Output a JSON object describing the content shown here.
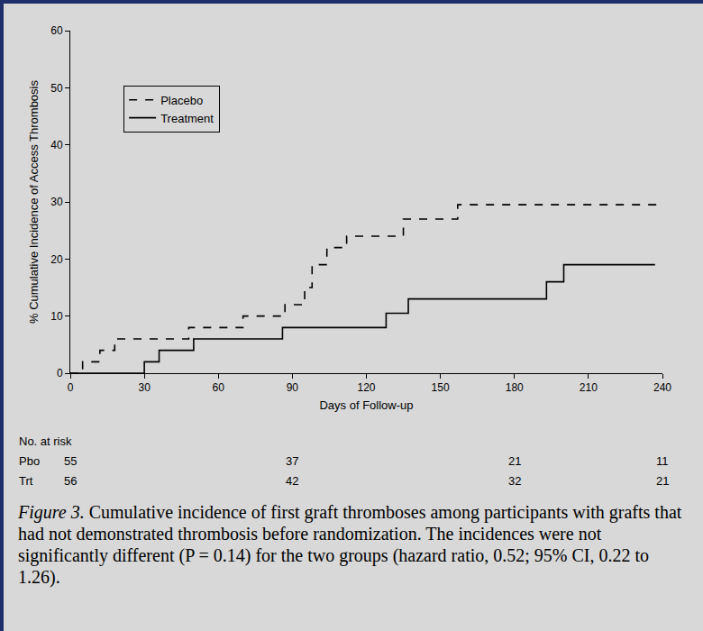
{
  "chart_data": {
    "type": "line",
    "x_label": "Days of Follow-up",
    "y_label": "% Cumulative Incidence of Access Thrombosis",
    "series": [
      {
        "name": "Placebo",
        "color": "#000000",
        "line_style": "dashed",
        "x": [
          0,
          5,
          12,
          18,
          48,
          70,
          87,
          95,
          98,
          104,
          112,
          135,
          157,
          238
        ],
        "values": [
          0,
          2,
          4,
          6,
          8,
          10,
          12,
          15,
          19,
          22,
          24,
          27,
          29.5,
          29.5
        ]
      },
      {
        "name": "Treatment",
        "color": "#000000",
        "line_style": "solid",
        "x": [
          0,
          30,
          36,
          50,
          86,
          128,
          137,
          193,
          200,
          237
        ],
        "values": [
          0,
          2,
          4,
          6,
          8,
          10.5,
          13,
          16,
          19,
          19
        ]
      }
    ],
    "xlim": [
      0,
      240
    ],
    "xticks": [
      0,
      30,
      60,
      90,
      120,
      150,
      180,
      210,
      240
    ],
    "ylim": [
      0,
      60
    ],
    "yticks": [
      0,
      10,
      20,
      30,
      40,
      50,
      60
    ],
    "grid": false,
    "legend": "upper left",
    "at_risk": {
      "title": "No. at risk",
      "times": [
        0,
        90,
        180,
        240
      ],
      "rows": [
        {
          "name": "Pbo",
          "values": [
            55,
            37,
            21,
            11
          ]
        },
        {
          "name": "Trt",
          "values": [
            56,
            42,
            32,
            21
          ]
        }
      ]
    },
    "caption": {
      "label": "Figure 3.",
      "text": "Cumulative incidence of first graft thromboses among participants with grafts that had not demonstrated thrombosis before randomization. The incidences were not significantly different (P = 0.14) for the two groups (hazard ratio, 0.52; 95% CI, 0.22 to 1.26)."
    }
  }
}
